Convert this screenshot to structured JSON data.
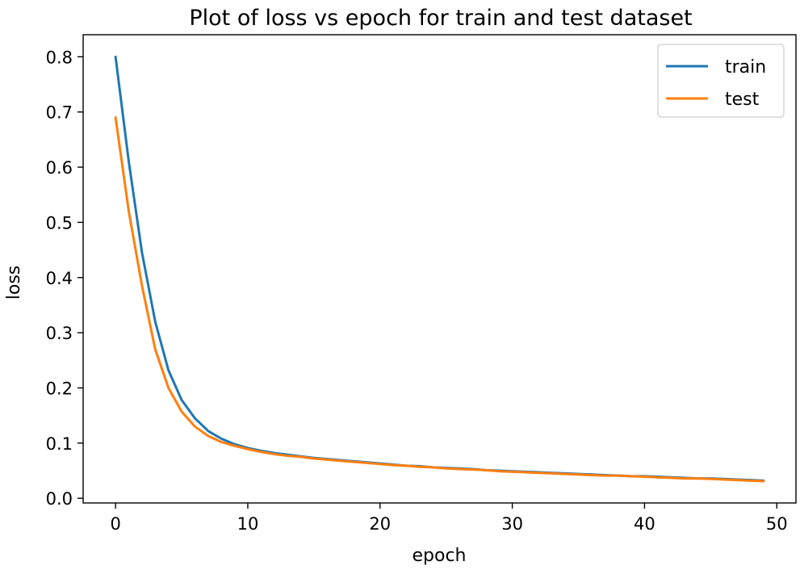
{
  "chart_data": {
    "type": "line",
    "title": "Plot of loss vs epoch for train and test dataset",
    "xlabel": "epoch",
    "ylabel": "loss",
    "xlim": [
      -2.45,
      51.45
    ],
    "ylim": [
      -0.0085,
      0.84
    ],
    "x_ticks": [
      0,
      10,
      20,
      30,
      40,
      50
    ],
    "y_ticks": [
      0.0,
      0.1,
      0.2,
      0.3,
      0.4,
      0.5,
      0.6,
      0.7,
      0.8
    ],
    "y_tick_decimals": 1,
    "grid": false,
    "legend_position": "top-right",
    "x": [
      0,
      1,
      2,
      3,
      4,
      5,
      6,
      7,
      8,
      9,
      10,
      11,
      12,
      13,
      14,
      15,
      16,
      17,
      18,
      19,
      20,
      21,
      22,
      23,
      24,
      25,
      26,
      27,
      28,
      29,
      30,
      31,
      32,
      33,
      34,
      35,
      36,
      37,
      38,
      39,
      40,
      41,
      42,
      43,
      44,
      45,
      46,
      47,
      48,
      49
    ],
    "series": [
      {
        "name": "train",
        "color": "#1f77b4",
        "values": [
          0.8,
          0.61,
          0.445,
          0.32,
          0.232,
          0.178,
          0.145,
          0.122,
          0.108,
          0.098,
          0.091,
          0.086,
          0.082,
          0.079,
          0.076,
          0.073,
          0.071,
          0.069,
          0.067,
          0.065,
          0.063,
          0.061,
          0.059,
          0.058,
          0.056,
          0.055,
          0.054,
          0.053,
          0.051,
          0.05,
          0.049,
          0.048,
          0.047,
          0.046,
          0.045,
          0.044,
          0.043,
          0.042,
          0.041,
          0.04,
          0.04,
          0.039,
          0.038,
          0.037,
          0.036,
          0.036,
          0.035,
          0.034,
          0.033,
          0.032
        ]
      },
      {
        "name": "test",
        "color": "#ff7f0e",
        "values": [
          0.69,
          0.52,
          0.385,
          0.27,
          0.2,
          0.157,
          0.13,
          0.113,
          0.102,
          0.095,
          0.089,
          0.084,
          0.08,
          0.077,
          0.075,
          0.072,
          0.07,
          0.068,
          0.066,
          0.064,
          0.062,
          0.06,
          0.059,
          0.057,
          0.056,
          0.054,
          0.053,
          0.052,
          0.051,
          0.049,
          0.048,
          0.047,
          0.046,
          0.045,
          0.044,
          0.043,
          0.042,
          0.041,
          0.041,
          0.04,
          0.039,
          0.038,
          0.037,
          0.036,
          0.036,
          0.035,
          0.034,
          0.033,
          0.032,
          0.031
        ]
      }
    ]
  }
}
